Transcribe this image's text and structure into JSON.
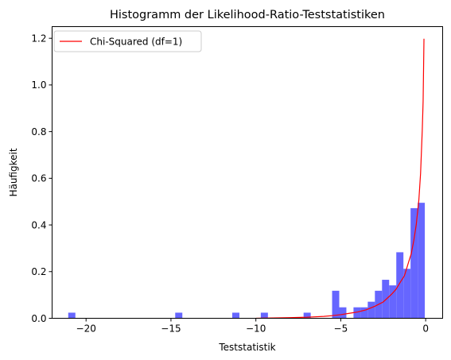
{
  "chart_data": {
    "type": "bar",
    "title": "Histogramm der Likelihood-Ratio-Teststatistiken",
    "xlabel": "Teststatistik",
    "ylabel": "Häufigkeit",
    "xlim": [
      -22,
      1
    ],
    "ylim": [
      0,
      1.25
    ],
    "xticks": [
      -20,
      -15,
      -10,
      -5,
      0
    ],
    "yticks": [
      0.0,
      0.2,
      0.4,
      0.6,
      0.8,
      1.0,
      1.2
    ],
    "xtick_labels": [
      "−20",
      "−15",
      "−10",
      "−5",
      "0"
    ],
    "ytick_labels": [
      "0.0",
      "0.2",
      "0.4",
      "0.6",
      "0.8",
      "1.0",
      "1.2"
    ],
    "grid": false,
    "legend": {
      "position": "top-left",
      "entries": [
        "Chi-Squared (df=1)"
      ]
    },
    "series": [
      {
        "type": "histogram",
        "color": "#6666ff",
        "bins": [
          {
            "x0": -21.05,
            "x1": -20.63,
            "value": 0.024
          },
          {
            "x0": -14.75,
            "x1": -14.33,
            "value": 0.024
          },
          {
            "x0": -11.39,
            "x1": -10.97,
            "value": 0.024
          },
          {
            "x0": -9.71,
            "x1": -9.29,
            "value": 0.024
          },
          {
            "x0": -7.19,
            "x1": -6.77,
            "value": 0.024
          },
          {
            "x0": -5.51,
            "x1": -5.09,
            "value": 0.118
          },
          {
            "x0": -5.09,
            "x1": -4.67,
            "value": 0.047
          },
          {
            "x0": -4.25,
            "x1": -3.83,
            "value": 0.047
          },
          {
            "x0": -3.83,
            "x1": -3.41,
            "value": 0.047
          },
          {
            "x0": -3.41,
            "x1": -2.99,
            "value": 0.071
          },
          {
            "x0": -2.99,
            "x1": -2.57,
            "value": 0.118
          },
          {
            "x0": -2.57,
            "x1": -2.15,
            "value": 0.165
          },
          {
            "x0": -2.15,
            "x1": -1.73,
            "value": 0.141
          },
          {
            "x0": -1.73,
            "x1": -1.31,
            "value": 0.283
          },
          {
            "x0": -1.31,
            "x1": -0.89,
            "value": 0.212
          },
          {
            "x0": -0.89,
            "x1": -0.47,
            "value": 0.472
          },
          {
            "x0": -0.47,
            "x1": -0.05,
            "value": 0.495
          }
        ]
      },
      {
        "name": "Chi-Squared (df=1)",
        "type": "line",
        "color": "#ff0000",
        "x": [
          -10.0,
          -9.0,
          -8.0,
          -7.0,
          -6.0,
          -5.5,
          -5.0,
          -4.5,
          -4.0,
          -3.5,
          -3.0,
          -2.5,
          -2.0,
          -1.75,
          -1.5,
          -1.25,
          -1.0,
          -0.85,
          -0.7,
          -0.55,
          -0.4,
          -0.3,
          -0.2,
          -0.15,
          -0.1
        ],
        "y": [
          0.0,
          0.0012,
          0.0025,
          0.0045,
          0.0082,
          0.0113,
          0.0155,
          0.0213,
          0.027,
          0.0363,
          0.0514,
          0.0699,
          0.1038,
          0.1237,
          0.1539,
          0.1826,
          0.242,
          0.2765,
          0.333,
          0.404,
          0.5079,
          0.6212,
          0.807,
          0.9305,
          1.198
        ]
      }
    ]
  }
}
